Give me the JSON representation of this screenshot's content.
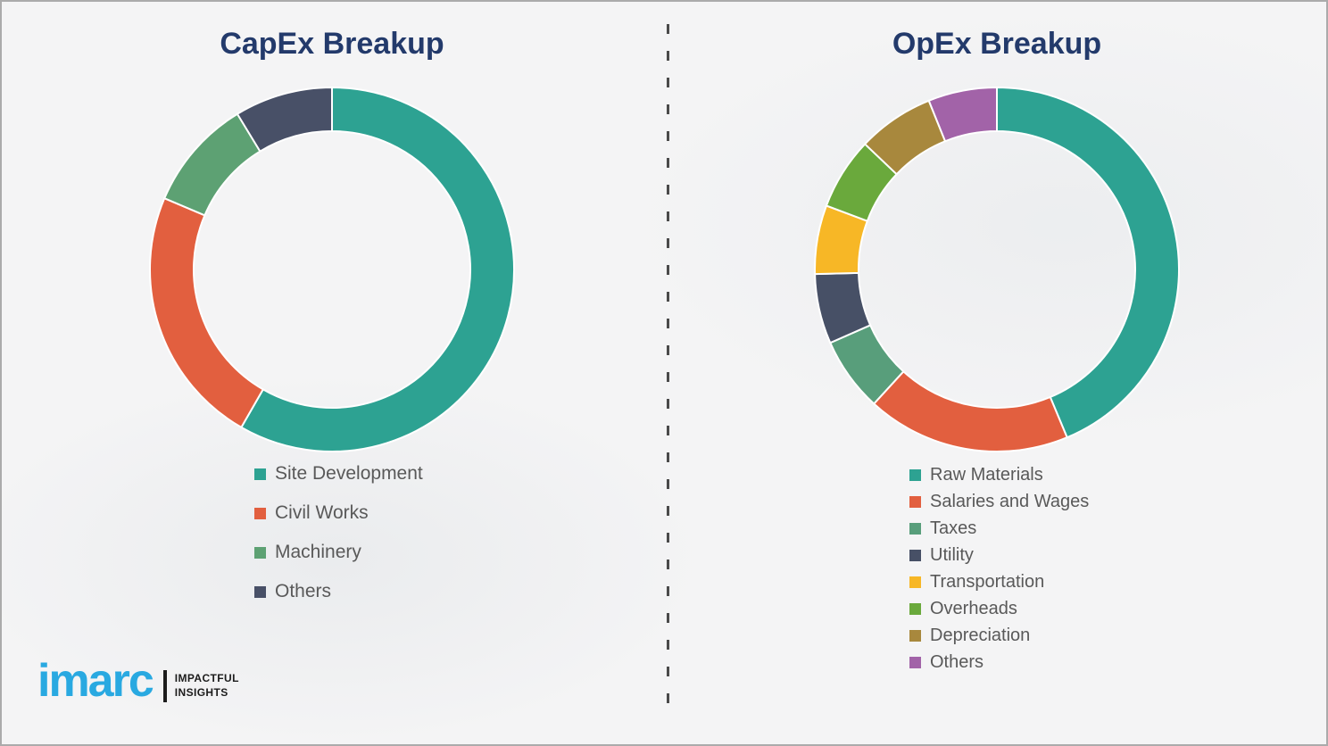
{
  "page": {
    "background_color": "#f4f4f5",
    "border_color": "#ababab",
    "divider_style": "vertical-dashed",
    "divider_color": "#4a4a4a",
    "title_color": "#233a6b",
    "legend_text_color": "#595959"
  },
  "chart_data": [
    {
      "type": "pie",
      "subtype": "donut",
      "title": "CapEx Breakup",
      "labels": [
        "Site Development",
        "Civil Works",
        "Machinery",
        "Others"
      ],
      "values": [
        58.3,
        23.1,
        9.9,
        8.7
      ],
      "unit": "percent-of-ring (estimated from arc angles, no data labels shown)",
      "colors": [
        "#2DA292",
        "#E25F3F",
        "#5DA173",
        "#485067"
      ],
      "start_angle_deg": 0,
      "direction": "clockwise",
      "inner_radius_ratio": 0.76,
      "legend_position": "below-left",
      "data_labels_shown": false
    },
    {
      "type": "pie",
      "subtype": "donut",
      "title": "OpEx Breakup",
      "labels": [
        "Raw Materials",
        "Salaries and Wages",
        "Taxes",
        "Utility",
        "Transportation",
        "Overheads",
        "Depreciation",
        "Others"
      ],
      "values": [
        43.7,
        18.1,
        6.6,
        6.2,
        6.1,
        6.4,
        6.8,
        6.1
      ],
      "unit": "percent-of-ring (estimated from arc angles, no data labels shown)",
      "colors": [
        "#2DA292",
        "#E25F3F",
        "#589E7B",
        "#475066",
        "#F7B726",
        "#6AA93C",
        "#A8883D",
        "#A263A8"
      ],
      "start_angle_deg": 0,
      "direction": "clockwise",
      "inner_radius_ratio": 0.76,
      "legend_position": "below-left",
      "data_labels_shown": false
    }
  ],
  "branding": {
    "logo_text": "imarc",
    "logo_color": "#29a9e1",
    "tagline_line1": "IMPACTFUL",
    "tagline_line2": "INSIGHTS"
  }
}
